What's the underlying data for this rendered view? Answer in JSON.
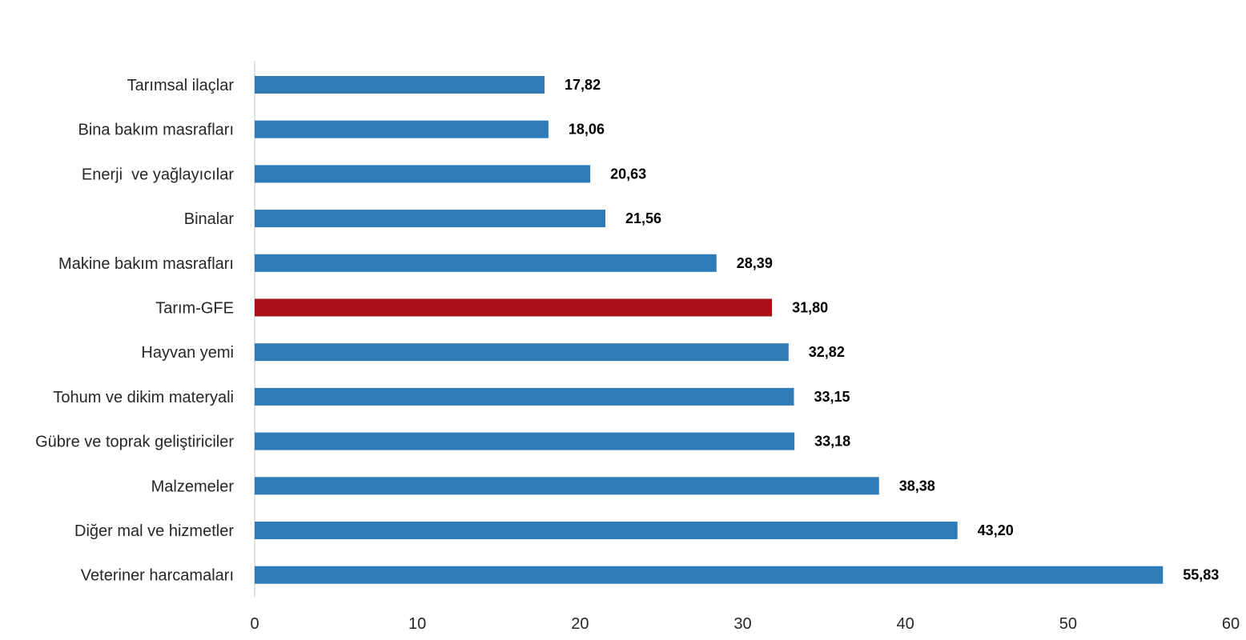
{
  "chart_data": {
    "type": "bar",
    "orientation": "horizontal",
    "title": "",
    "xlabel": "",
    "ylabel": "",
    "xlim": [
      0,
      60
    ],
    "x_ticks": [
      "0",
      "10",
      "20",
      "30",
      "40",
      "50",
      "60"
    ],
    "grid": false,
    "categories": [
      "Tarımsal ilaçlar",
      "Bina bakım masrafları",
      "Enerji  ve yağlayıcılar",
      "Binalar",
      "Makine bakım masrafları",
      "Tarım-GFE",
      "Hayvan yemi",
      "Tohum ve dikim materyali",
      "Gübre ve toprak geliştiriciler",
      "Malzemeler",
      "Diğer mal ve hizmetler",
      "Veteriner harcamaları"
    ],
    "values": [
      17.82,
      18.06,
      20.63,
      21.56,
      28.39,
      31.8,
      32.82,
      33.15,
      33.18,
      38.38,
      43.2,
      55.83
    ],
    "value_labels": [
      "17,82",
      "18,06",
      "20,63",
      "21,56",
      "28,39",
      "31,80",
      "32,82",
      "33,15",
      "33,18",
      "38,38",
      "43,20",
      "55,83"
    ],
    "colors": {
      "default_bar": "#2e7bb8",
      "highlight_bar": "#a81118",
      "axis": "#d9d9d9"
    },
    "highlight_category": "Tarım-GFE"
  }
}
